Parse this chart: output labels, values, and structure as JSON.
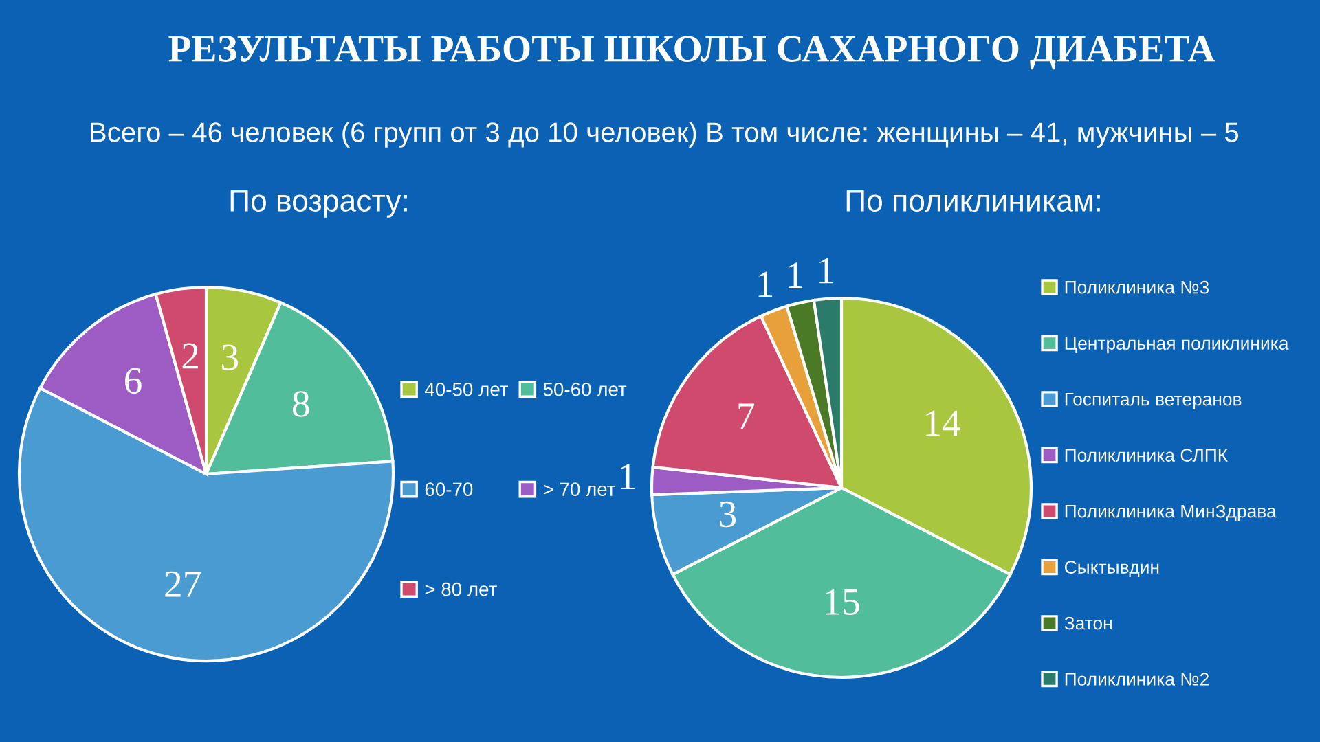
{
  "chart_data": [
    {
      "type": "other",
      "title": "РЕЗУЛЬТАТЫ РАБОТЫ ШКОЛЫ САХАРНОГО ДИАБЕТА",
      "subtitle": "Всего – 46 человек (6 групп от 3 до 10 человек) В том числе: женщины – 41, мужчины – 5"
    },
    {
      "type": "pie",
      "title": "По возрасту:",
      "categories": [
        "40-50 лет",
        "50-60 лет",
        "60-70",
        "> 70 лет",
        "> 80 лет"
      ],
      "values": [
        3,
        8,
        27,
        6,
        2
      ],
      "colors": [
        "#a8c63e",
        "#52bd9a",
        "#4a9bd1",
        "#9d5bc4",
        "#d04a6e"
      ],
      "data_labels": true,
      "legend": "right"
    },
    {
      "type": "pie",
      "title": "По поликлиникам:",
      "categories": [
        "Поликлиника №3",
        "Центральная поликлиника",
        "Госпиталь ветеранов",
        "Поликлиника СЛПК",
        "Поликлиника МинЗдрава",
        "Сыктывдин",
        "Затон",
        "Поликлиника №2"
      ],
      "values": [
        14,
        15,
        3,
        1,
        7,
        1,
        1,
        1
      ],
      "colors": [
        "#a8c63e",
        "#52bd9a",
        "#4a9bd1",
        "#9d5bc4",
        "#d04a6e",
        "#e8a13a",
        "#4b7a26",
        "#2b7b6b"
      ],
      "data_labels": true,
      "legend": "right"
    }
  ]
}
